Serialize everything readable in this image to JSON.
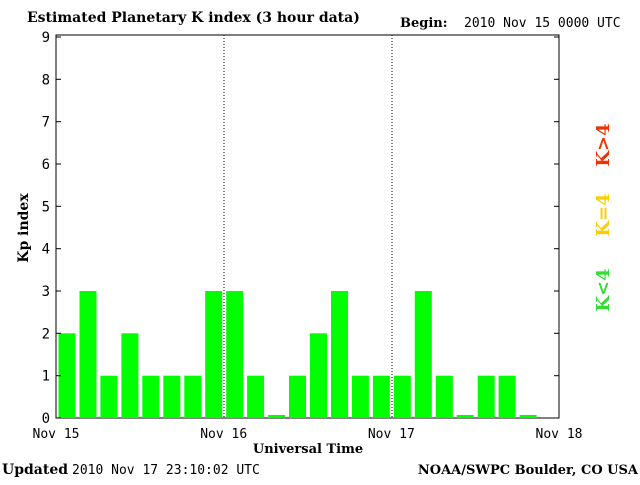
{
  "chart_data": {
    "type": "bar",
    "title": "Estimated Planetary K index (3 hour data)",
    "begin_label": "Begin:",
    "begin_value": "2010 Nov 15 0000 UTC",
    "ylabel": "Kp index",
    "xlabel": "Universal Time",
    "ylim": [
      0,
      9
    ],
    "y_ticks": [
      "0",
      "1",
      "2",
      "3",
      "4",
      "5",
      "6",
      "7",
      "8",
      "9"
    ],
    "x_tick_labels": [
      "Nov 15",
      "Nov 16",
      "Nov 17",
      "Nov 18"
    ],
    "slots_per_day": 8,
    "days": 3,
    "values": [
      2,
      3,
      1,
      2,
      1,
      1,
      1,
      3,
      3,
      1,
      0,
      1,
      2,
      3,
      1,
      1,
      1,
      3,
      1,
      0,
      1,
      1,
      0
    ],
    "bar_color": "#00ff00",
    "legend": [
      {
        "label": "K<4",
        "color": "#33dd33"
      },
      {
        "label": "K=4",
        "color": "#ffcc00"
      },
      {
        "label": "K>4",
        "color": "#ee3300"
      }
    ]
  },
  "footer": {
    "updated_label": "Updated",
    "updated_value": "2010 Nov 17 23:10:02 UTC",
    "source": "NOAA/SWPC Boulder, CO USA"
  }
}
